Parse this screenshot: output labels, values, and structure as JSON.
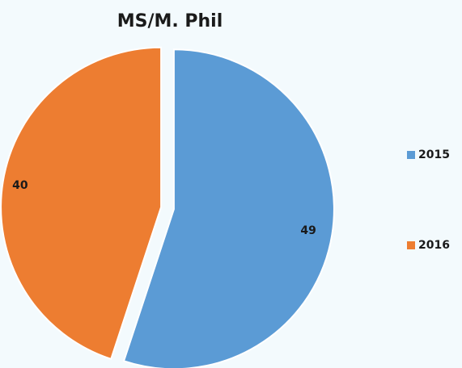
{
  "chart_data": {
    "type": "pie",
    "title": "MS/M. Phil",
    "slices": [
      {
        "label": "2015",
        "value": 49,
        "color": "#5b9bd5"
      },
      {
        "label": "2016",
        "value": 40,
        "color": "#ed7d31"
      }
    ],
    "legend_position": "right",
    "exploded": true
  }
}
